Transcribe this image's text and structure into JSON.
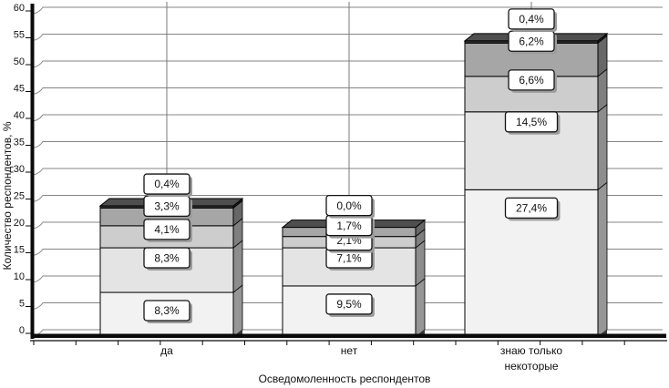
{
  "chart_data": {
    "type": "bar",
    "variant": "3d-stacked-column",
    "title": "",
    "xlabel": "Осведомоленность респондентов",
    "ylabel": "Количество респондентов, %",
    "ylim": [
      0,
      60
    ],
    "ytick_step": 5,
    "yticks": [
      0,
      5,
      10,
      15,
      20,
      25,
      30,
      35,
      40,
      45,
      50,
      55,
      60
    ],
    "categories": [
      "да",
      "нет",
      "знаю только некоторые"
    ],
    "categories_display": [
      [
        "да"
      ],
      [
        "нет"
      ],
      [
        "знаю только",
        "некоторые"
      ]
    ],
    "grid": true,
    "legend": false,
    "series": [
      {
        "name": "segment-1",
        "color": "#f2f2f2",
        "values": [
          8.3,
          9.5,
          27.4
        ],
        "labels": [
          "8,3%",
          "9,5%",
          "27,4%"
        ]
      },
      {
        "name": "segment-2",
        "color": "#e4e4e4",
        "values": [
          8.3,
          7.1,
          14.5
        ],
        "labels": [
          "8,3%",
          "7,1%",
          "14,5%"
        ]
      },
      {
        "name": "segment-3",
        "color": "#cdcdcd",
        "values": [
          4.1,
          2.1,
          6.6
        ],
        "labels": [
          "4,1%",
          "2,1%",
          "6,6%"
        ]
      },
      {
        "name": "segment-4",
        "color": "#a6a6a6",
        "values": [
          3.3,
          1.7,
          6.2
        ],
        "labels": [
          "3,3%",
          "1,7%",
          "6,2%"
        ]
      },
      {
        "name": "segment-5",
        "color": "#333333",
        "values": [
          0.4,
          0.0,
          0.4
        ],
        "labels": [
          "0,4%",
          "0,0%",
          "0,4%"
        ]
      }
    ],
    "colors": {
      "grid": "#858585",
      "leader": "#7a7a7a",
      "axis": "#0a0a0a",
      "bar_edge": "#000000",
      "bar_top_face": "#4f4f4f",
      "callout_bg": "#ffffff",
      "callout_border": "#141414",
      "callout_shadow": "#9c9c9c",
      "text": "#111111"
    }
  }
}
